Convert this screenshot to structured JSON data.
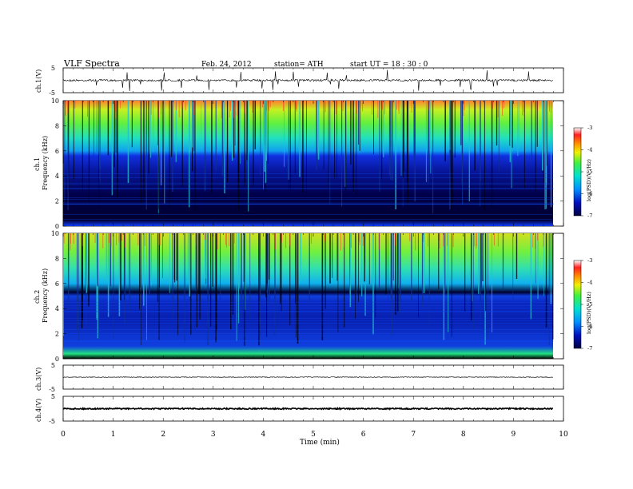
{
  "header": {
    "title": "VLF  Spectra",
    "date": "Feb. 24, 2012",
    "station": "station= ATH",
    "start": "start  UT  =    18 : 30 : 0"
  },
  "chart_data": [
    {
      "type": "line",
      "panel": "ch1-waveform",
      "ylabel": "ch.1(V)",
      "ylim": [
        -5,
        5
      ],
      "yticks": [
        "5",
        "-5"
      ],
      "baseline": 0,
      "note_values": "signal near 0 V with spikes to about -5 V"
    },
    {
      "type": "heatmap",
      "panel": "ch1-spectrogram",
      "ylabel": "ch.1\nFrequency (kHz)",
      "ylabel_top": "ch.1",
      "ylabel_bottom": "Frequency (kHz)",
      "ylim": [
        0,
        10
      ],
      "yticks": [
        "0",
        "2",
        "4",
        "6",
        "8",
        "10"
      ],
      "colorbar": {
        "label": "log(PSD)(V²/Hz)",
        "range": [
          -7,
          -3
        ],
        "ticks": [
          "-3",
          "-4",
          "-5",
          "-6",
          "-7"
        ]
      }
    },
    {
      "type": "heatmap",
      "panel": "ch2-spectrogram",
      "ylabel_top": "ch.2",
      "ylabel_bottom": "Frequency (kHz)",
      "ylim": [
        0,
        10
      ],
      "yticks": [
        "0",
        "2",
        "4",
        "6",
        "8",
        "10"
      ],
      "colorbar": {
        "label": "log(PSD)(V²/Hz)",
        "range": [
          -7,
          -3
        ],
        "ticks": [
          "-3",
          "-4",
          "-5",
          "-6",
          "-7"
        ]
      }
    },
    {
      "type": "line",
      "panel": "ch3-waveform",
      "ylabel": "ch.3(V)",
      "ylim": [
        -5,
        5
      ],
      "yticks": [
        "5",
        "-5"
      ],
      "baseline": 0
    },
    {
      "type": "line",
      "panel": "ch4-waveform",
      "ylabel": "ch.4(V)",
      "ylim": [
        -5,
        5
      ],
      "yticks": [
        "5",
        "-5"
      ],
      "baseline": 0
    }
  ],
  "xaxis": {
    "label": "Time  (min)",
    "xlim": [
      0,
      10
    ],
    "ticks": [
      "0",
      "1",
      "2",
      "3",
      "4",
      "5",
      "6",
      "7",
      "8",
      "9",
      "10"
    ],
    "data_end": 9.8
  },
  "colors": {
    "spectro_low": "#000033",
    "spectro_mid": "#1030d0",
    "spectro_high": "#40e040",
    "spectro_top": "#ff4020"
  }
}
